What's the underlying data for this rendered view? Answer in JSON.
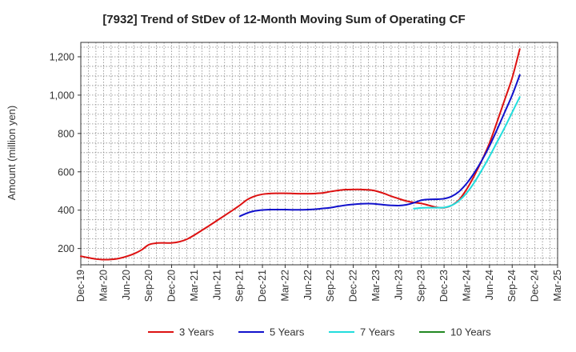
{
  "chart_data": {
    "type": "line",
    "title": "[7932]  Trend of StDev of 12-Month Moving Sum of Operating CF",
    "xlabel": "",
    "ylabel": "Amount (million yen)",
    "x_tick_labels": [
      "Dec-19",
      "Mar-20",
      "Jun-20",
      "Sep-20",
      "Dec-20",
      "Mar-21",
      "Jun-21",
      "Sep-21",
      "Dec-21",
      "Mar-22",
      "Jun-22",
      "Sep-22",
      "Dec-22",
      "Mar-23",
      "Jun-23",
      "Sep-23",
      "Dec-23",
      "Mar-24",
      "Jun-24",
      "Sep-24",
      "Dec-24",
      "Mar-25"
    ],
    "y_ticks": [
      200,
      400,
      600,
      800,
      1000,
      1200
    ],
    "y_tick_labels": [
      "200",
      "400",
      "600",
      "800",
      "1,000",
      "1,200"
    ],
    "ylim": [
      115,
      1275
    ],
    "grid": true,
    "legend_position": "bottom",
    "series": [
      {
        "name": "3 Years",
        "color": "#dd1111",
        "points": [
          [
            "Dec-19",
            160
          ],
          [
            "Jan-20",
            152
          ],
          [
            "Feb-20",
            145
          ],
          [
            "Mar-20",
            142
          ],
          [
            "Apr-20",
            143
          ],
          [
            "May-20",
            148
          ],
          [
            "Jun-20",
            158
          ],
          [
            "Jul-20",
            172
          ],
          [
            "Aug-20",
            192
          ],
          [
            "Sep-20",
            220
          ],
          [
            "Oct-20",
            228
          ],
          [
            "Nov-20",
            229
          ],
          [
            "Dec-20",
            229
          ],
          [
            "Jan-21",
            235
          ],
          [
            "Feb-21",
            248
          ],
          [
            "Mar-21",
            270
          ],
          [
            "Apr-21",
            295
          ],
          [
            "May-21",
            320
          ],
          [
            "Jun-21",
            346
          ],
          [
            "Jul-21",
            372
          ],
          [
            "Aug-21",
            398
          ],
          [
            "Sep-21",
            425
          ],
          [
            "Oct-21",
            455
          ],
          [
            "Nov-21",
            473
          ],
          [
            "Dec-21",
            483
          ],
          [
            "Jan-22",
            487
          ],
          [
            "Feb-22",
            488
          ],
          [
            "Mar-22",
            488
          ],
          [
            "Apr-22",
            487
          ],
          [
            "May-22",
            486
          ],
          [
            "Jun-22",
            486
          ],
          [
            "Jul-22",
            487
          ],
          [
            "Aug-22",
            490
          ],
          [
            "Sep-22",
            497
          ],
          [
            "Oct-22",
            503
          ],
          [
            "Nov-22",
            507
          ],
          [
            "Dec-22",
            508
          ],
          [
            "Jan-23",
            508
          ],
          [
            "Feb-23",
            506
          ],
          [
            "Mar-23",
            500
          ],
          [
            "Apr-23",
            488
          ],
          [
            "May-23",
            473
          ],
          [
            "Jun-23",
            460
          ],
          [
            "Jul-23",
            448
          ],
          [
            "Aug-23",
            440
          ],
          [
            "Sep-23",
            435
          ],
          [
            "Oct-23",
            425
          ],
          [
            "Nov-23",
            415
          ],
          [
            "Dec-23",
            413
          ],
          [
            "Jan-24",
            425
          ],
          [
            "Feb-24",
            455
          ],
          [
            "Mar-24",
            510
          ],
          [
            "Apr-24",
            580
          ],
          [
            "May-24",
            660
          ],
          [
            "Jun-24",
            750
          ],
          [
            "Jul-24",
            860
          ],
          [
            "Aug-24",
            975
          ],
          [
            "Sep-24",
            1090
          ],
          [
            "Oct-24",
            1240
          ]
        ]
      },
      {
        "name": "5 Years",
        "color": "#1111cc",
        "points": [
          [
            "Sep-21",
            368
          ],
          [
            "Oct-21",
            385
          ],
          [
            "Nov-21",
            396
          ],
          [
            "Dec-21",
            401
          ],
          [
            "Jan-22",
            403
          ],
          [
            "Feb-22",
            403
          ],
          [
            "Mar-22",
            403
          ],
          [
            "Apr-22",
            402
          ],
          [
            "May-22",
            402
          ],
          [
            "Jun-22",
            403
          ],
          [
            "Jul-22",
            405
          ],
          [
            "Aug-22",
            409
          ],
          [
            "Sep-22",
            413
          ],
          [
            "Oct-22",
            420
          ],
          [
            "Nov-22",
            426
          ],
          [
            "Dec-22",
            430
          ],
          [
            "Jan-23",
            433
          ],
          [
            "Feb-23",
            434
          ],
          [
            "Mar-23",
            432
          ],
          [
            "Apr-23",
            428
          ],
          [
            "May-23",
            425
          ],
          [
            "Jun-23",
            424
          ],
          [
            "Jul-23",
            428
          ],
          [
            "Aug-23",
            438
          ],
          [
            "Sep-23",
            452
          ],
          [
            "Oct-23",
            456
          ],
          [
            "Nov-23",
            457
          ],
          [
            "Dec-23",
            460
          ],
          [
            "Jan-24",
            472
          ],
          [
            "Feb-24",
            498
          ],
          [
            "Mar-24",
            540
          ],
          [
            "Apr-24",
            595
          ],
          [
            "May-24",
            660
          ],
          [
            "Jun-24",
            735
          ],
          [
            "Jul-24",
            820
          ],
          [
            "Aug-24",
            910
          ],
          [
            "Sep-24",
            1000
          ],
          [
            "Oct-24",
            1105
          ]
        ]
      },
      {
        "name": "7 Years",
        "color": "#22dddd",
        "points": [
          [
            "Aug-23",
            408
          ],
          [
            "Sep-23",
            412
          ],
          [
            "Oct-23",
            413
          ],
          [
            "Nov-23",
            413
          ],
          [
            "Dec-23",
            414
          ],
          [
            "Jan-24",
            425
          ],
          [
            "Feb-24",
            450
          ],
          [
            "Mar-24",
            490
          ],
          [
            "Apr-24",
            545
          ],
          [
            "May-24",
            610
          ],
          [
            "Jun-24",
            680
          ],
          [
            "Jul-24",
            755
          ],
          [
            "Aug-24",
            830
          ],
          [
            "Sep-24",
            910
          ],
          [
            "Oct-24",
            990
          ]
        ]
      },
      {
        "name": "10 Years",
        "color": "#228822",
        "points": []
      }
    ]
  }
}
